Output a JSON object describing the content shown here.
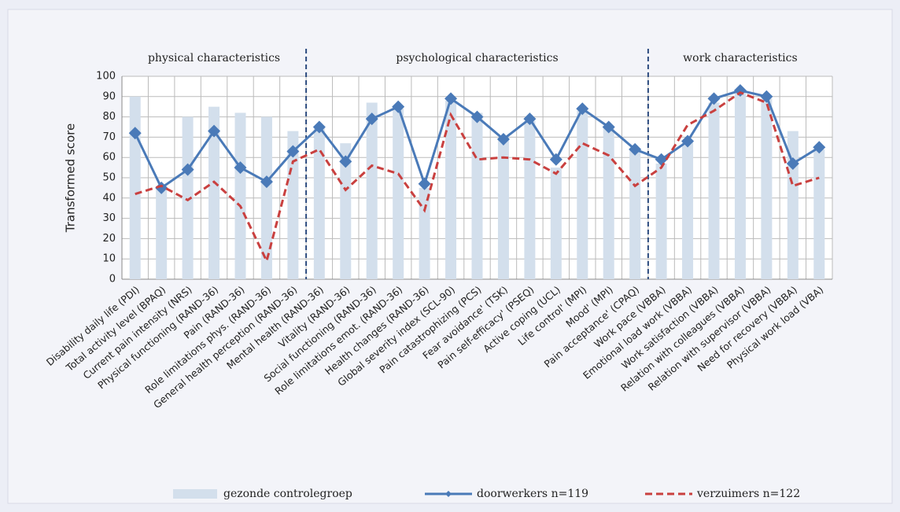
{
  "chart_data": {
    "type": "combo",
    "sections": [
      "physical characteristics",
      "psychological characteristics",
      "work characteristics"
    ],
    "y_label": "Transformed score",
    "categories": [
      "Disability daily life (PDI)",
      "Total activity level (BPAQ)",
      "Current pain intensity (NRS)",
      "Physical functioning (RAND-36)",
      "Pain (RAND-36)",
      "Role limitations phys. (RAND-36)",
      "General health perception (RAND-36)",
      "Mental health (RAND-36)",
      "Vitality (RAND-36)",
      "Social functioning (RAND-36)",
      "Role limitations emot. (RAND-36)",
      "Health changes (RAND-36)",
      "Global severity index (SCL-90)",
      "Pain catastrophizing (PCS)",
      "Fear avoidance' (TSK)",
      "Pain self-efficacy' (PSEQ)",
      "Active coping (UCL)",
      "Life control' (MPI)",
      "Mood' (MPI)",
      "Pain acceptance' (CPAQ)",
      "Work pace (VBBA)",
      "Emotional load work (VBBA)",
      "Work satisfaction (VBBA)",
      "Relation with colleagues (VBBA)",
      "Relation with supervisor (VBBA)",
      "Need for recovery (VBBA)",
      "Physical work load (VBA)"
    ],
    "series": [
      {
        "name": "gezonde controlegroep",
        "type": "bar",
        "color": "#d3dfec",
        "values": [
          90,
          45,
          80,
          85,
          82,
          80,
          73,
          75,
          67,
          87,
          84,
          45,
          88,
          82,
          70,
          78,
          55,
          83,
          75,
          64,
          57,
          68,
          87,
          93,
          89,
          73,
          64
        ]
      },
      {
        "name": "doorwerkers n=119",
        "type": "line",
        "color": "#4a7ab8",
        "marker": "diamond",
        "values": [
          72,
          45,
          54,
          73,
          55,
          48,
          63,
          75,
          58,
          79,
          85,
          47,
          89,
          80,
          69,
          79,
          59,
          84,
          75,
          64,
          59,
          68,
          89,
          93,
          90,
          57,
          65
        ]
      },
      {
        "name": "verzuimers n=122",
        "type": "line",
        "color": "#c9403f",
        "dashed": true,
        "values": [
          42,
          46,
          39,
          48,
          36,
          9,
          58,
          64,
          44,
          56,
          52,
          34,
          81,
          59,
          60,
          59,
          52,
          67,
          61,
          46,
          55,
          76,
          83,
          92,
          87,
          46,
          50
        ]
      }
    ],
    "ylim": [
      0,
      100
    ],
    "yticks": [
      0,
      10,
      20,
      30,
      40,
      50,
      60,
      70,
      80,
      90,
      100
    ],
    "grid": true
  }
}
